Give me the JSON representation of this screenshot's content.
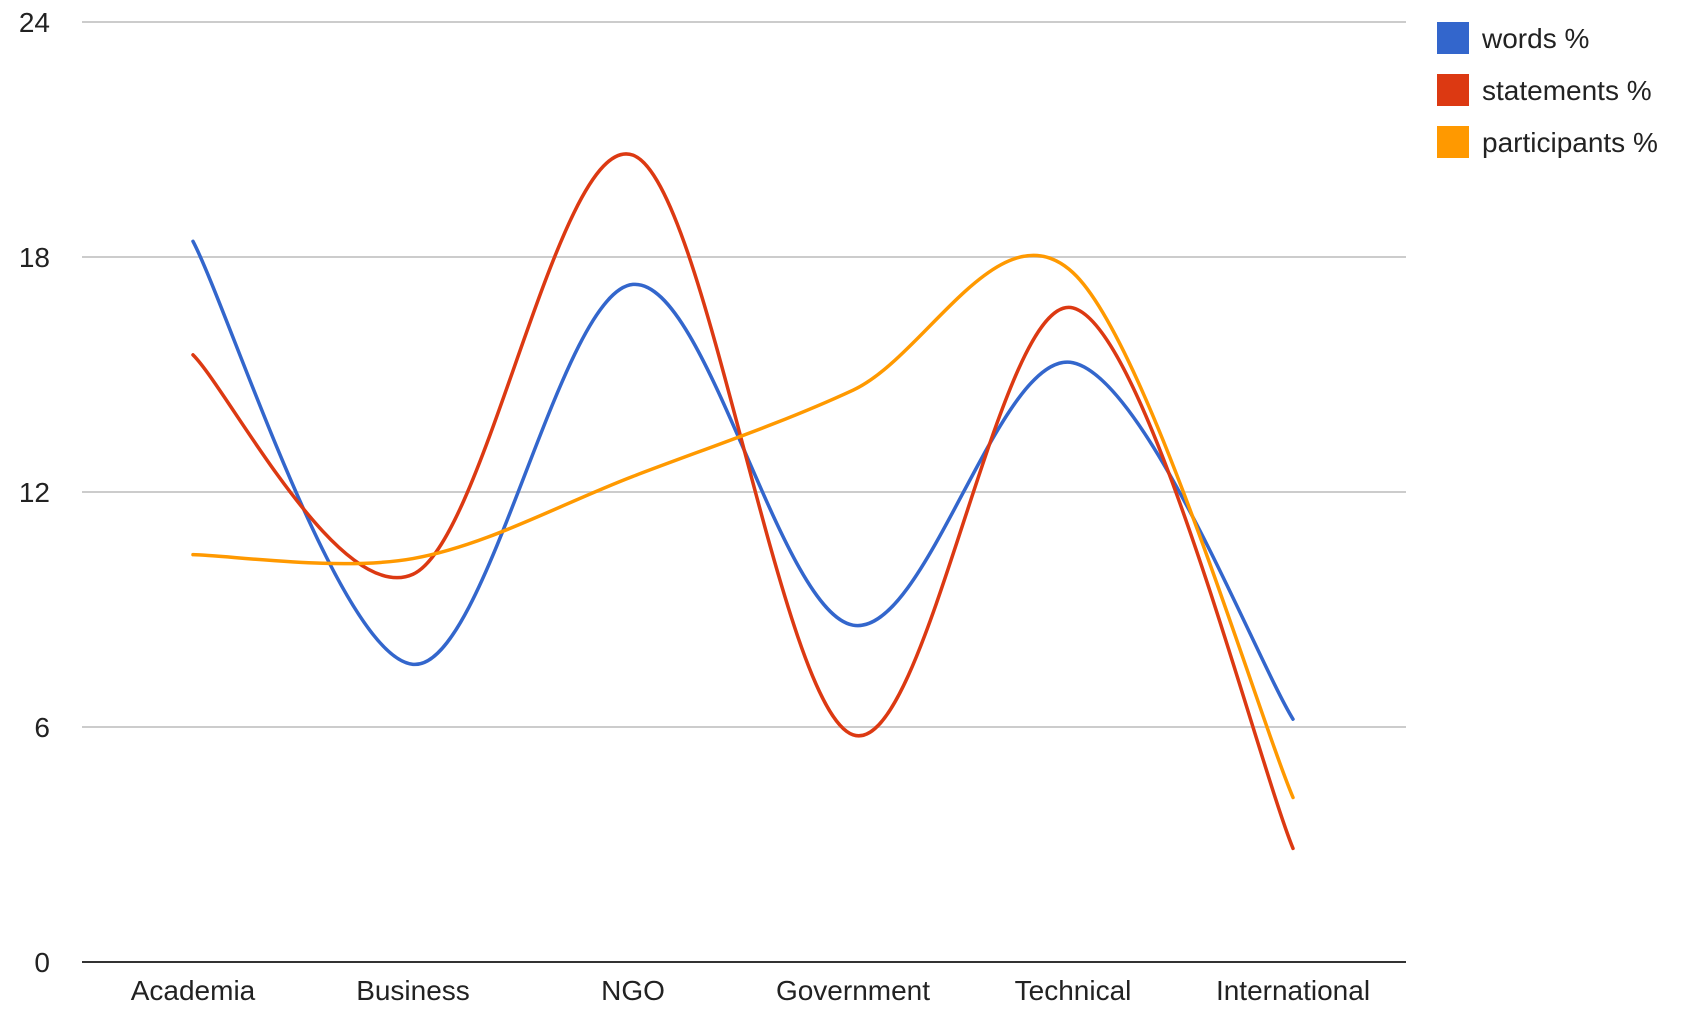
{
  "chart_data": {
    "type": "line",
    "title": "",
    "xlabel": "",
    "ylabel": "",
    "categories": [
      "Academia",
      "Business",
      "NGO",
      "Government",
      "Technical",
      "International"
    ],
    "ylim": [
      0,
      24
    ],
    "yticks": [
      "0",
      "6",
      "12",
      "18",
      "24"
    ],
    "grid": true,
    "curve": "smooth",
    "legend_position": "top-right",
    "series": [
      {
        "name": "words %",
        "color": "#3366cc",
        "values": [
          18.4,
          7.6,
          17.3,
          8.6,
          15.3,
          6.2
        ]
      },
      {
        "name": "statements %",
        "color": "#dc3912",
        "values": [
          15.5,
          9.9,
          20.6,
          5.8,
          16.7,
          2.9
        ]
      },
      {
        "name": "participants %",
        "color": "#ff9900",
        "values": [
          10.4,
          10.3,
          12.4,
          14.6,
          17.6,
          4.2
        ]
      }
    ]
  }
}
